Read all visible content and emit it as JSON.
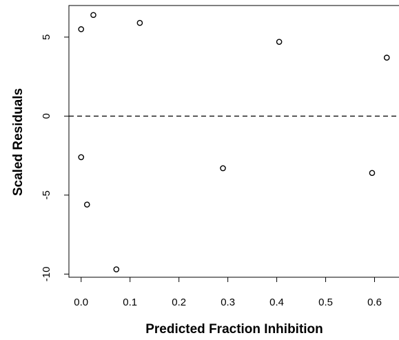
{
  "chart_data": {
    "type": "scatter",
    "title": "",
    "xlabel": "Predicted Fraction Inhibition",
    "ylabel": "Scaled Residuals",
    "xlim": [
      -0.025,
      0.65
    ],
    "ylim": [
      -10.2,
      7.0
    ],
    "xticks": [
      0.0,
      0.1,
      0.2,
      0.3,
      0.4,
      0.5,
      0.6
    ],
    "xtick_labels": [
      "0.0",
      "0.1",
      "0.2",
      "0.3",
      "0.4",
      "0.5",
      "0.6"
    ],
    "yticks": [
      -10,
      -5,
      0,
      5
    ],
    "ytick_labels": [
      "-10",
      "-5",
      "0",
      "5"
    ],
    "reference_line": {
      "y": 0,
      "style": "dashed"
    },
    "marker": "open-circle",
    "grid": false,
    "legend": "none",
    "points": [
      {
        "x": 0.0,
        "y": 5.5
      },
      {
        "x": 0.025,
        "y": 6.4
      },
      {
        "x": 0.12,
        "y": 5.9
      },
      {
        "x": 0.405,
        "y": 4.7
      },
      {
        "x": 0.625,
        "y": 3.7
      },
      {
        "x": 0.0,
        "y": -2.6
      },
      {
        "x": 0.012,
        "y": -5.6
      },
      {
        "x": 0.072,
        "y": -9.7
      },
      {
        "x": 0.29,
        "y": -3.3
      },
      {
        "x": 0.595,
        "y": -3.6
      }
    ]
  },
  "colors": {
    "ink": "#000000",
    "background": "#ffffff"
  }
}
